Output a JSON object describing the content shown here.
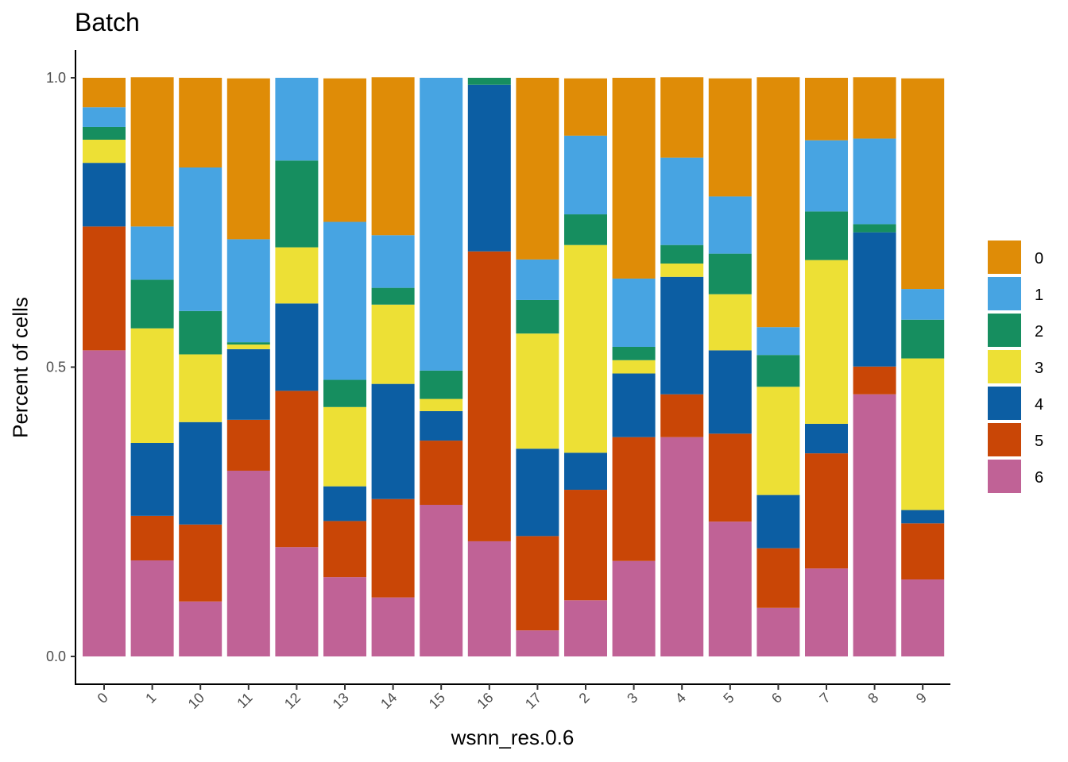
{
  "chart_data": {
    "type": "bar",
    "stacked": true,
    "title": "Batch",
    "xlabel": "wsnn_res.0.6",
    "ylabel": "Percent of cells",
    "ylim": [
      0,
      1
    ],
    "yticks": [
      "0.0",
      "0.5",
      "1.0"
    ],
    "grid": false,
    "legend_position": "right",
    "categories": [
      "0",
      "1",
      "10",
      "11",
      "12",
      "13",
      "14",
      "15",
      "16",
      "17",
      "2",
      "3",
      "4",
      "5",
      "6",
      "7",
      "8",
      "9"
    ],
    "series": [
      {
        "name": "0",
        "color": "#DF8C07",
        "values": [
          0.051,
          0.258,
          0.155,
          0.278,
          0.0,
          0.248,
          0.273,
          0.0,
          0.0,
          0.314,
          0.099,
          0.347,
          0.139,
          0.204,
          0.432,
          0.108,
          0.106,
          0.364
        ]
      },
      {
        "name": "1",
        "color": "#47A4E2",
        "values": [
          0.034,
          0.092,
          0.248,
          0.178,
          0.143,
          0.273,
          0.091,
          0.506,
          0.0,
          0.07,
          0.136,
          0.118,
          0.151,
          0.099,
          0.048,
          0.123,
          0.148,
          0.053
        ]
      },
      {
        "name": "2",
        "color": "#168E5F",
        "values": [
          0.022,
          0.084,
          0.075,
          0.004,
          0.15,
          0.047,
          0.029,
          0.049,
          0.012,
          0.058,
          0.053,
          0.023,
          0.032,
          0.07,
          0.055,
          0.084,
          0.014,
          0.067
        ]
      },
      {
        "name": "3",
        "color": "#EDE035",
        "values": [
          0.04,
          0.198,
          0.117,
          0.008,
          0.097,
          0.137,
          0.137,
          0.021,
          0.0,
          0.199,
          0.359,
          0.023,
          0.023,
          0.097,
          0.187,
          0.283,
          0.0,
          0.262
        ]
      },
      {
        "name": "4",
        "color": "#0C5EA3",
        "values": [
          0.11,
          0.126,
          0.177,
          0.122,
          0.151,
          0.06,
          0.199,
          0.051,
          0.288,
          0.151,
          0.064,
          0.11,
          0.203,
          0.144,
          0.092,
          0.051,
          0.232,
          0.023
        ]
      },
      {
        "name": "5",
        "color": "#C94606",
        "values": [
          0.214,
          0.077,
          0.133,
          0.088,
          0.27,
          0.097,
          0.17,
          0.111,
          0.501,
          0.163,
          0.191,
          0.214,
          0.074,
          0.152,
          0.103,
          0.199,
          0.048,
          0.097
        ]
      },
      {
        "name": "6",
        "color": "#C06296",
        "values": [
          0.529,
          0.166,
          0.095,
          0.321,
          0.189,
          0.137,
          0.102,
          0.262,
          0.199,
          0.045,
          0.097,
          0.165,
          0.379,
          0.233,
          0.084,
          0.152,
          0.453,
          0.133
        ]
      }
    ]
  }
}
